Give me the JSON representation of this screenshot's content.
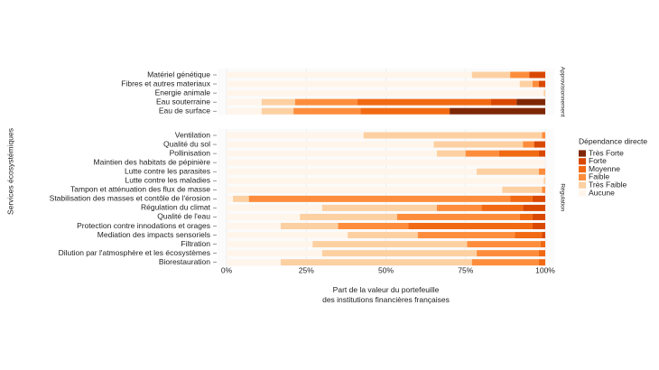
{
  "chart_data": {
    "type": "bar",
    "orientation": "horizontal",
    "stacked": true,
    "x_label": "Part de la valeur du portefeuille\ndes institutions financières françaises",
    "y_label": "Services écosystémiques",
    "legend_title": "Dépendance directe",
    "xlim": [
      0,
      100
    ],
    "xticks": [
      {
        "value": 0,
        "label": "0%"
      },
      {
        "value": 25,
        "label": "25%"
      },
      {
        "value": 50,
        "label": "50%"
      },
      {
        "value": 75,
        "label": "75%"
      },
      {
        "value": 100,
        "label": "100%"
      }
    ],
    "panels": [
      {
        "label": "Approvisionnement",
        "categories": [
          "Matériel génétique",
          "Fibres et autres materiaux",
          "Energie animale",
          "Eau souterraine",
          "Eau de surface"
        ]
      },
      {
        "label": "Régulation",
        "categories": [
          "Ventilation",
          "Qualité du sol",
          "Pollinisation",
          "Maintien des habitats de pépinière",
          "Lutte contre les parasites",
          "Lutte contre les maladies",
          "Tampon et atténuation des flux de masse",
          "Stabilisation des masses et contôle de l'érosion",
          "Régulation du climat",
          "Qualité de l'eau",
          "Protection contre innodations et orages",
          "Mediation des impacts sensoriels",
          "Filtration",
          "Dilution par l'atmosphère et les écosystèmes",
          "Biorestauration"
        ]
      }
    ],
    "series": [
      {
        "name": "Très Forte",
        "color": "#7f2704",
        "values": [
          [
            0,
            0,
            0,
            9,
            30
          ],
          [
            0,
            0,
            0,
            0,
            0,
            0,
            0,
            0,
            0,
            0,
            0,
            0,
            0,
            0,
            0
          ]
        ]
      },
      {
        "name": "Forte",
        "color": "#d94801",
        "values": [
          [
            5,
            2,
            0,
            8,
            0
          ],
          [
            0,
            3.5,
            2,
            0,
            0,
            0,
            0,
            4,
            7,
            4,
            4,
            1,
            0,
            0,
            0
          ]
        ]
      },
      {
        "name": "Moyenne",
        "color": "#f16913",
        "values": [
          [
            0,
            0,
            0,
            42,
            28
          ],
          [
            0,
            0,
            12.5,
            0,
            0,
            0,
            0,
            7,
            13,
            4,
            39,
            8.5,
            1.5,
            2,
            2
          ]
        ]
      },
      {
        "name": "Faible",
        "color": "#fd8d3c",
        "values": [
          [
            6,
            2,
            0,
            19.5,
            21
          ],
          [
            1,
            3.5,
            10.5,
            0,
            2,
            0,
            1,
            82,
            14,
            38.5,
            22,
            30.5,
            23,
            19.5,
            21
          ]
        ]
      },
      {
        "name": "Très Faible",
        "color": "#fdd0a2",
        "values": [
          [
            12,
            4,
            0.5,
            10.5,
            10
          ],
          [
            56,
            28,
            9,
            0,
            19.5,
            0.5,
            12.5,
            5,
            36,
            30.5,
            18,
            22,
            48.5,
            48.5,
            60
          ]
        ]
      },
      {
        "name": "Aucune",
        "color": "#fff5eb",
        "values": [
          [
            77,
            92,
            99.5,
            11,
            11
          ],
          [
            43,
            65,
            66,
            100,
            78.5,
            99.5,
            86.5,
            2,
            30,
            23,
            17,
            38,
            27,
            30,
            17
          ]
        ]
      }
    ]
  }
}
